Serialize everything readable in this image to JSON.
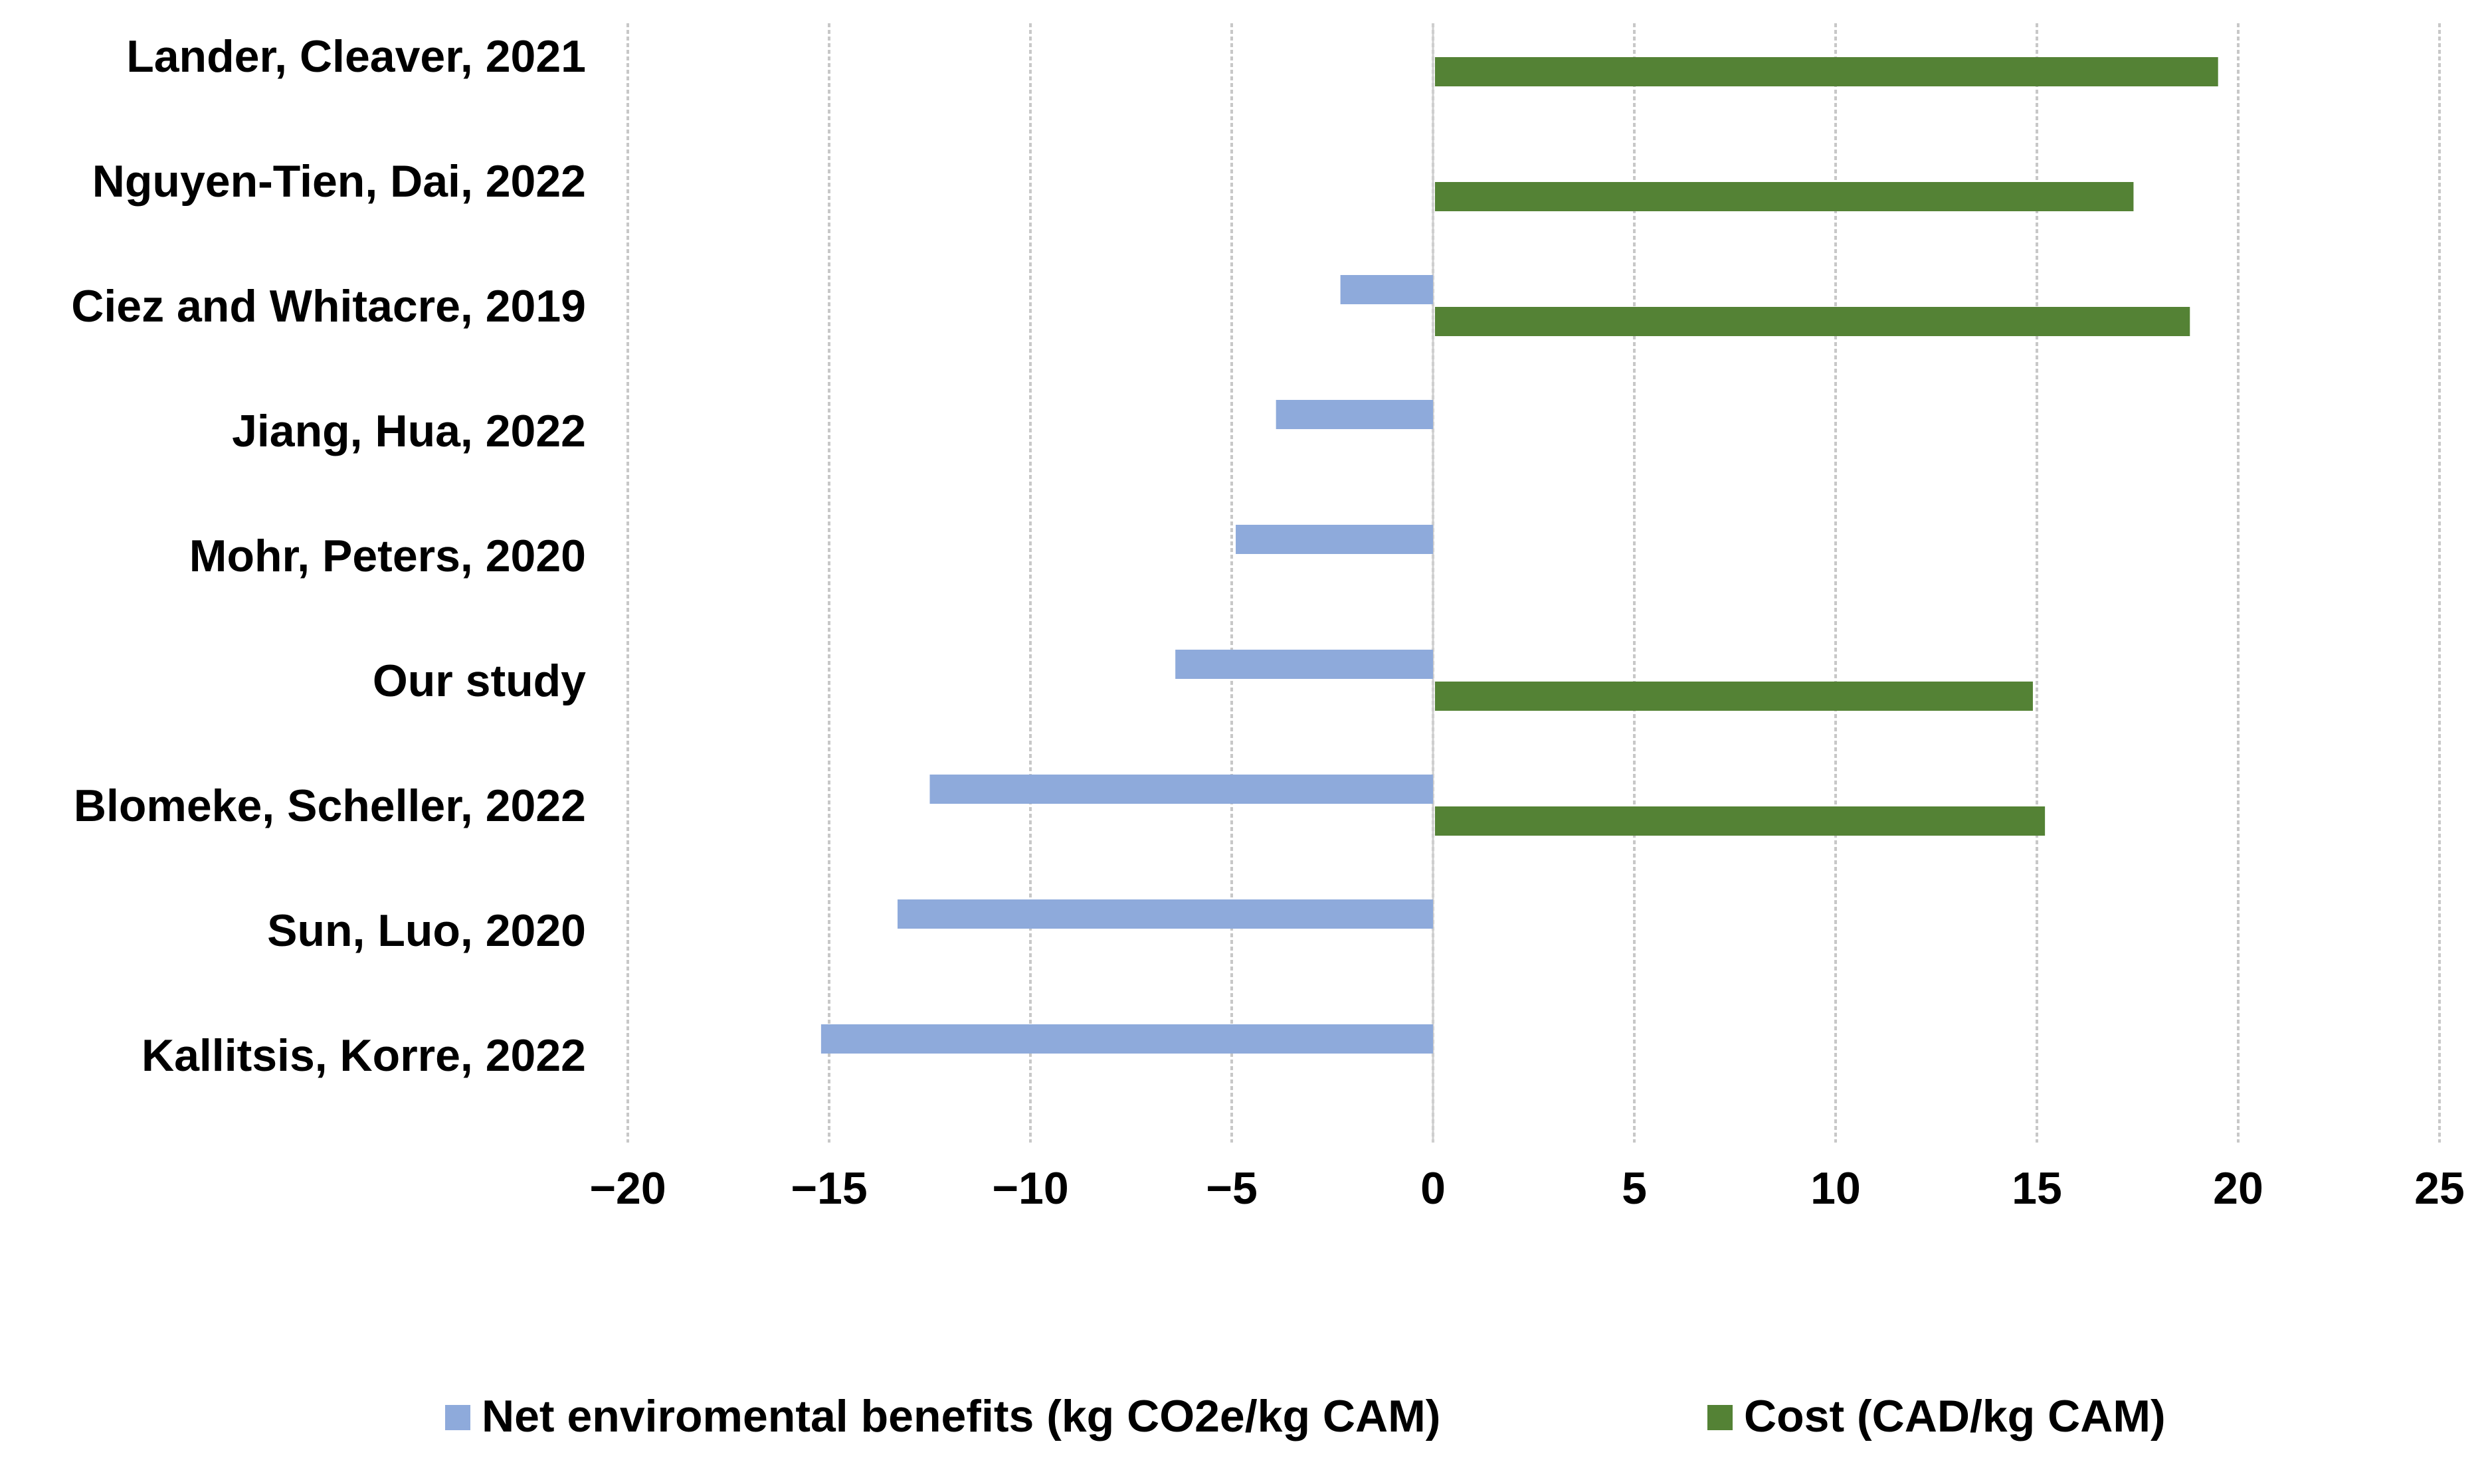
{
  "chart_data": {
    "type": "bar",
    "orientation": "horizontal",
    "title": "",
    "xlabel": "",
    "ylabel": "",
    "xlim": [
      -20,
      25
    ],
    "xticks": [
      -20,
      -15,
      -10,
      -5,
      0,
      5,
      10,
      15,
      20,
      25
    ],
    "xtick_labels": [
      "−20",
      "−15",
      "−10",
      "−5",
      "0",
      "5",
      "10",
      "15",
      "20",
      "25"
    ],
    "grid": "vertical",
    "legend_position": "bottom",
    "categories": [
      "Lander, Cleaver, 2021",
      "Nguyen-Tien, Dai, 2022",
      "Ciez and Whitacre, 2019",
      "Jiang, Hua, 2022",
      "Mohr, Peters, 2020",
      "Our study",
      "Blomeke, Scheller, 2022",
      "Sun, Luo, 2020",
      "Kallitsis, Korre, 2022"
    ],
    "series": [
      {
        "name": "Net enviromental benefits (kg CO2e/kg CAM)",
        "color": "#8eaadb",
        "values": [
          null,
          null,
          -2.3,
          -3.9,
          -4.9,
          -6.4,
          -12.5,
          -13.3,
          -15.2
        ]
      },
      {
        "name": "Cost (CAD/kg CAM)",
        "color": "#548235",
        "values": [
          19.5,
          17.4,
          18.8,
          null,
          null,
          14.9,
          15.2,
          null,
          null
        ]
      }
    ]
  }
}
